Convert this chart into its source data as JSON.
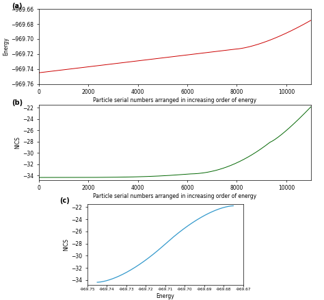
{
  "panel_a": {
    "x_min": 0,
    "x_max": 11000,
    "y_min": -969.76,
    "y_max": -969.66,
    "yticks": [
      -969.66,
      -969.68,
      -969.7,
      -969.72,
      -969.74,
      -969.76
    ],
    "xticks": [
      0,
      2000,
      4000,
      6000,
      8000,
      10000
    ],
    "xlabel": "Particle serial numbers arranged in increasing order of energy",
    "ylabel": "Energy",
    "color": "#cc0000",
    "label": "(a)"
  },
  "panel_b": {
    "x_min": 0,
    "x_max": 11000,
    "y_min": -34.8,
    "y_max": -21.5,
    "yticks": [
      -22,
      -24,
      -26,
      -28,
      -30,
      -32,
      -34
    ],
    "xticks": [
      0,
      2000,
      4000,
      6000,
      8000,
      10000
    ],
    "xlabel": "Particle serial numbers arranged in increasing order of energy",
    "ylabel": "NICS",
    "color": "#006600",
    "label": "(b)"
  },
  "panel_c": {
    "x_min": -969.75,
    "x_max": -969.67,
    "y_min": -34.8,
    "y_max": -21.5,
    "yticks": [
      -22,
      -24,
      -26,
      -28,
      -30,
      -32,
      -34
    ],
    "xticks": [
      -969.75,
      -969.74,
      -969.73,
      -969.72,
      -969.71,
      -969.7,
      -969.69,
      -969.68,
      -969.67
    ],
    "xtick_labels": [
      "-969.75",
      "-969.74",
      "-969.73",
      "-969.72",
      "-969.71",
      "-969.70",
      "-969.69",
      "-969.68",
      "-969.67"
    ],
    "xlabel": "Energy",
    "ylabel": "NICS",
    "color": "#3399cc",
    "label": "(c)"
  },
  "background_color": "#ffffff",
  "n_points": 11000
}
